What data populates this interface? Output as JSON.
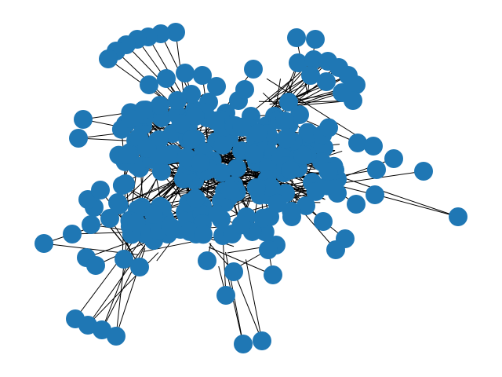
{
  "figure": {
    "kind": "network graph (node-link diagram)",
    "node_color": "#1f77b4",
    "edge_color": "#000000",
    "background": "#ffffff",
    "text": []
  }
}
